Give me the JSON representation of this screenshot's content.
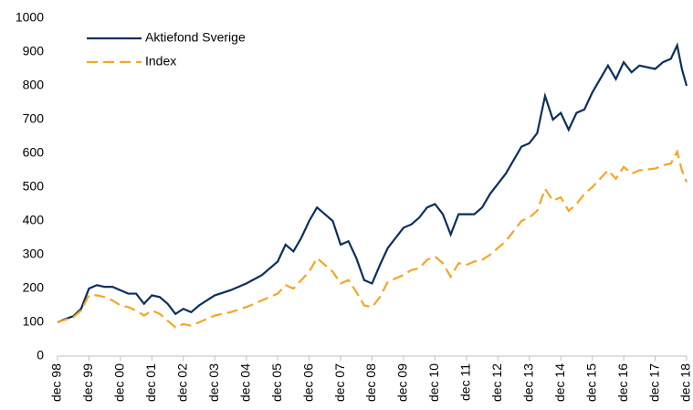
{
  "chart_data": {
    "type": "line",
    "x": [
      0,
      0.25,
      0.5,
      0.75,
      1,
      1.25,
      1.5,
      1.75,
      2,
      2.25,
      2.5,
      2.75,
      3,
      3.25,
      3.5,
      3.75,
      4,
      4.25,
      4.5,
      4.75,
      5,
      5.5,
      6,
      6.5,
      7,
      7.25,
      7.5,
      7.75,
      8,
      8.25,
      8.5,
      8.75,
      9,
      9.25,
      9.5,
      9.75,
      10,
      10.25,
      10.5,
      10.75,
      11,
      11.25,
      11.5,
      11.75,
      12,
      12.25,
      12.5,
      12.75,
      13,
      13.25,
      13.5,
      13.75,
      14,
      14.25,
      14.5,
      14.75,
      15,
      15.25,
      15.5,
      15.75,
      16,
      16.25,
      16.5,
      16.75,
      17,
      17.5,
      17.75,
      18,
      18.25,
      18.5,
      19,
      19.25,
      19.5,
      19.7,
      19.85,
      20
    ],
    "series": [
      {
        "name": "Aktiefond Sverige",
        "color": "#0b2f5e",
        "dash": false,
        "values": [
          100,
          110,
          118,
          140,
          200,
          210,
          205,
          205,
          195,
          185,
          185,
          155,
          180,
          175,
          155,
          125,
          140,
          130,
          150,
          165,
          180,
          195,
          215,
          240,
          280,
          330,
          310,
          350,
          400,
          440,
          420,
          400,
          330,
          340,
          290,
          225,
          215,
          270,
          320,
          350,
          380,
          390,
          410,
          440,
          450,
          420,
          360,
          420,
          420,
          420,
          440,
          480,
          510,
          540,
          580,
          620,
          630,
          660,
          770,
          700,
          720,
          670,
          720,
          730,
          780,
          860,
          820,
          870,
          840,
          860,
          850,
          870,
          880,
          920,
          850,
          800
        ]
      },
      {
        "name": "Index",
        "color": "#f5a623",
        "dash": true,
        "values": [
          100,
          108,
          115,
          135,
          180,
          180,
          175,
          165,
          150,
          145,
          135,
          120,
          135,
          125,
          105,
          85,
          95,
          90,
          100,
          110,
          120,
          130,
          145,
          165,
          185,
          210,
          200,
          225,
          250,
          290,
          270,
          250,
          215,
          225,
          190,
          150,
          145,
          175,
          220,
          230,
          240,
          255,
          260,
          285,
          295,
          275,
          235,
          275,
          270,
          280,
          285,
          300,
          320,
          340,
          370,
          400,
          410,
          430,
          495,
          460,
          470,
          430,
          450,
          480,
          500,
          550,
          525,
          560,
          540,
          550,
          555,
          565,
          570,
          605,
          550,
          515
        ]
      }
    ],
    "xlim": [
      0,
      20
    ],
    "xticks": [
      {
        "value": 0,
        "label": "dec 98"
      },
      {
        "value": 1,
        "label": "dec 99"
      },
      {
        "value": 2,
        "label": "dec 00"
      },
      {
        "value": 3,
        "label": "dec 01"
      },
      {
        "value": 4,
        "label": "dec 02"
      },
      {
        "value": 5,
        "label": "dec 03"
      },
      {
        "value": 6,
        "label": "dec 04"
      },
      {
        "value": 7,
        "label": "dec 05"
      },
      {
        "value": 8,
        "label": "dec 06"
      },
      {
        "value": 9,
        "label": "dec 07"
      },
      {
        "value": 10,
        "label": "dec 08"
      },
      {
        "value": 11,
        "label": "dec 09"
      },
      {
        "value": 12,
        "label": "dec 10"
      },
      {
        "value": 13,
        "label": "dec 11"
      },
      {
        "value": 14,
        "label": "dec 12"
      },
      {
        "value": 15,
        "label": "dec 13"
      },
      {
        "value": 16,
        "label": "dec 14"
      },
      {
        "value": 17,
        "label": "dec 15"
      },
      {
        "value": 18,
        "label": "dec 16"
      },
      {
        "value": 19,
        "label": "dec 17"
      },
      {
        "value": 20,
        "label": "dec 18"
      }
    ],
    "ylim": [
      0,
      1000
    ],
    "yticks": [
      0,
      100,
      200,
      300,
      400,
      500,
      600,
      700,
      800,
      900,
      1000
    ],
    "legend": "upper left",
    "grid": false
  }
}
